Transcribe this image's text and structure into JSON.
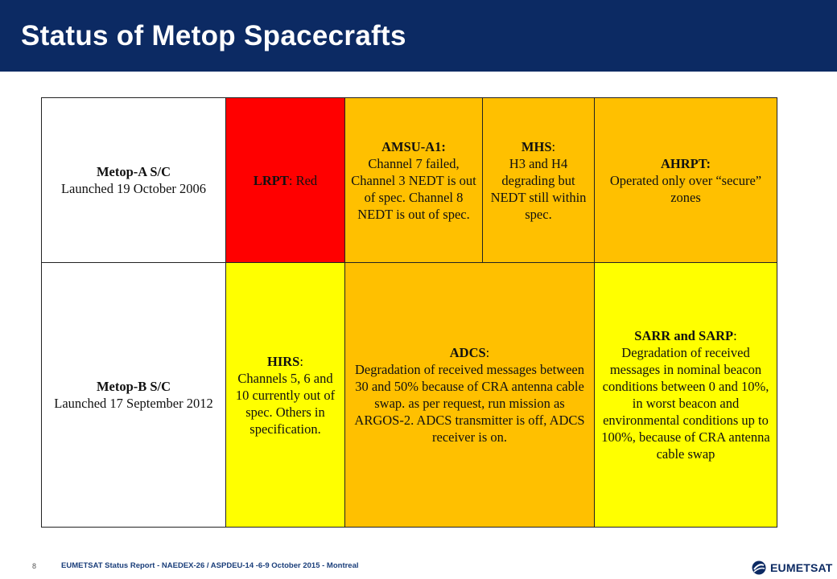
{
  "header": {
    "title": "Status of Metop Spacecrafts"
  },
  "colors": {
    "header_bg": "#0c2a63",
    "red": "#ff0000",
    "orange": "#ffc000",
    "yellow": "#ffff00",
    "white": "#ffffff"
  },
  "table": {
    "row_a": {
      "spacecraft": {
        "name": "Metop-A S/C",
        "launch": "Launched 19 October 2006"
      },
      "lrpt": {
        "label": "LRPT",
        "text": ": Red"
      },
      "amsu": {
        "label": "AMSU-A1:",
        "text": "Channel 7 failed, Channel 3 NEDT is out of spec. Channel 8 NEDT is out of spec."
      },
      "mhs": {
        "label": "MHS",
        "suffix": ":",
        "text": "H3 and H4 degrading but NEDT still within spec."
      },
      "ahrpt": {
        "label": "AHRPT:",
        "text": "Operated only over “secure” zones"
      }
    },
    "row_b": {
      "spacecraft": {
        "name": "Metop-B S/C",
        "launch": "Launched 17 September 2012"
      },
      "hirs": {
        "label": "HIRS",
        "suffix": ":",
        "text": "Channels 5, 6 and 10 currently out of spec. Others in specification."
      },
      "adcs": {
        "label": "ADCS",
        "suffix": ":",
        "text": "Degradation of received messages between 30 and 50% because of CRA antenna cable swap. as per request, run mission as ARGOS-2. ADCS transmitter is off, ADCS receiver is on."
      },
      "sarr": {
        "label": "SARR and SARP",
        "suffix": ":",
        "text": "Degradation of received messages in nominal beacon conditions between 0 and 10%, in worst beacon and environmental conditions up to 100%, because of CRA antenna cable swap"
      }
    }
  },
  "footer": {
    "page_number": "8",
    "text": "EUMETSAT Status Report - NAEDEX-26 / ASPDEU-14 -6-9 October 2015 - Montreal",
    "logo": "EUMETSAT",
    "logo_icon": "eumetsat-logo-icon"
  }
}
